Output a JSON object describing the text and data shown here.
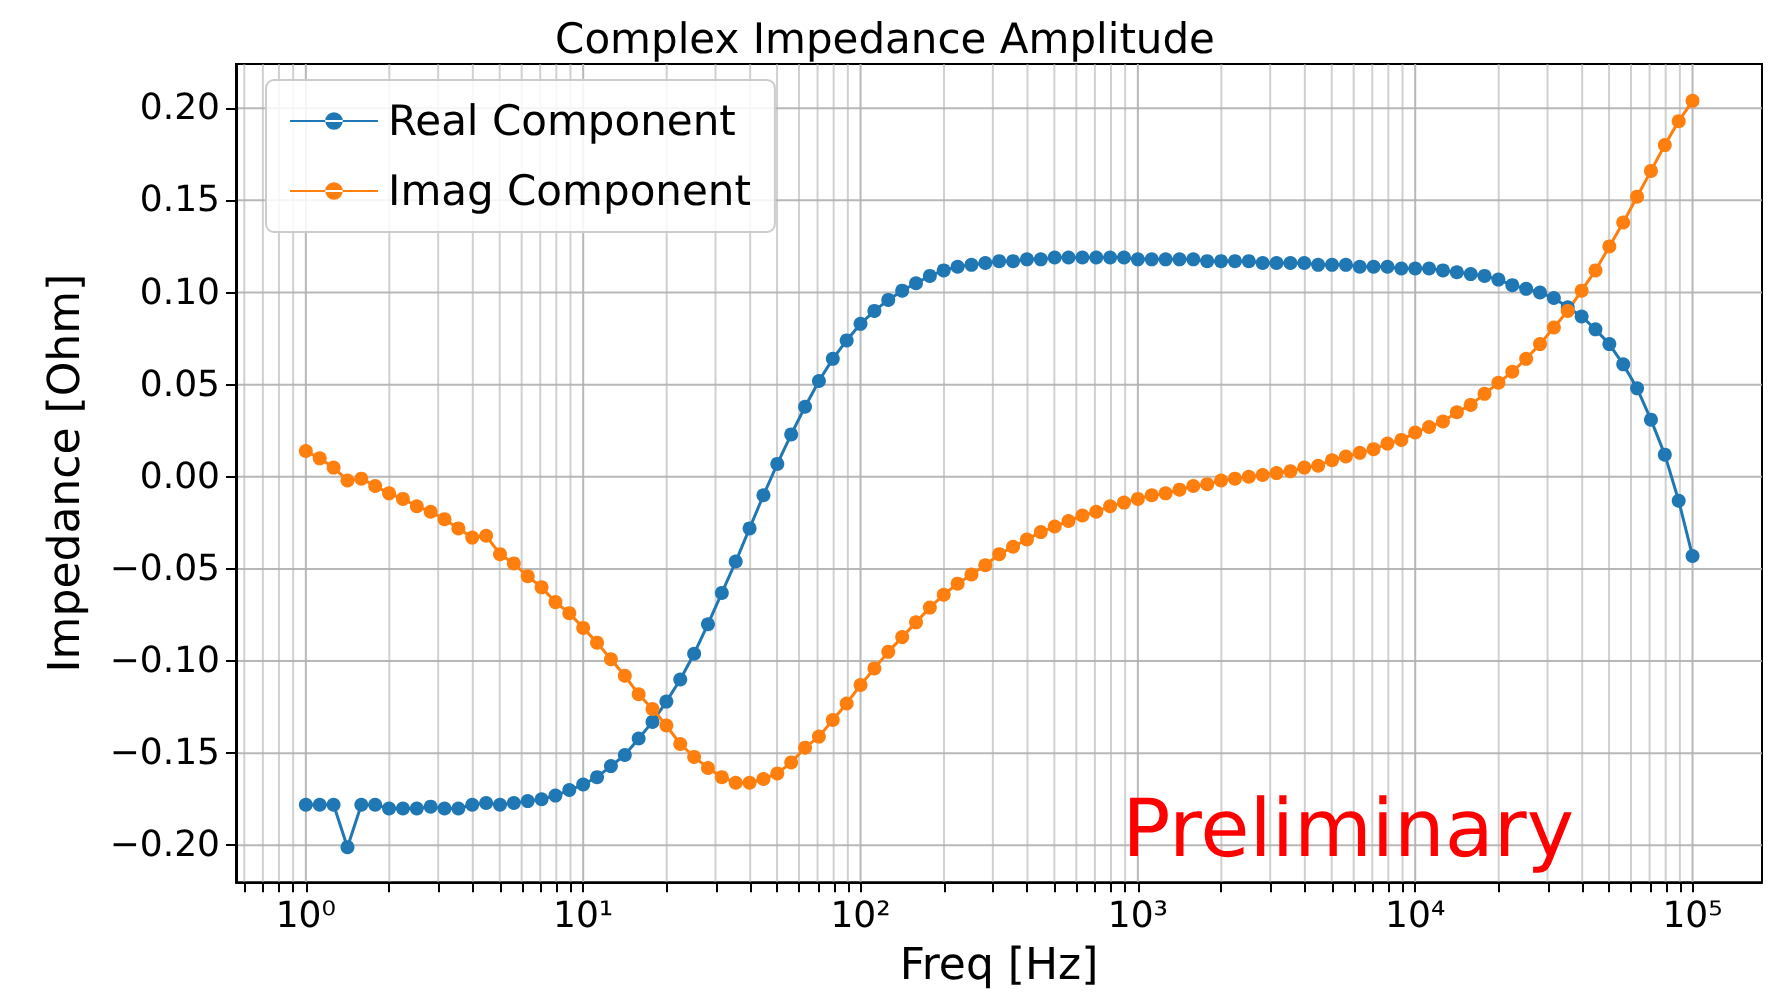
{
  "chart_data": {
    "type": "line",
    "title": "Complex Impedance Amplitude",
    "xlabel": "Freq [Hz]",
    "ylabel": "Impedance [Ohm]",
    "log": "x",
    "grid": true,
    "legend": "top left",
    "marker": "circle",
    "line_style": "solid",
    "annotations": [
      "Preliminary"
    ],
    "xlim": [
      0.56,
      178000
    ],
    "ylim": [
      -0.22,
      0.224
    ],
    "xticks": [
      {
        "value": 0.6,
        "label": null
      },
      {
        "value": 0.7,
        "label": null
      },
      {
        "value": 0.8,
        "label": null
      },
      {
        "value": 0.9,
        "label": null
      },
      {
        "value": 1,
        "label": "10⁰"
      },
      {
        "value": 2,
        "label": null
      },
      {
        "value": 3,
        "label": null
      },
      {
        "value": 4,
        "label": null
      },
      {
        "value": 5,
        "label": null
      },
      {
        "value": 6,
        "label": null
      },
      {
        "value": 7,
        "label": null
      },
      {
        "value": 8,
        "label": null
      },
      {
        "value": 9,
        "label": null
      },
      {
        "value": 10,
        "label": "10¹"
      },
      {
        "value": 20,
        "label": null
      },
      {
        "value": 30,
        "label": null
      },
      {
        "value": 40,
        "label": null
      },
      {
        "value": 50,
        "label": null
      },
      {
        "value": 60,
        "label": null
      },
      {
        "value": 70,
        "label": null
      },
      {
        "value": 80,
        "label": null
      },
      {
        "value": 90,
        "label": null
      },
      {
        "value": 100,
        "label": "10²"
      },
      {
        "value": 200,
        "label": null
      },
      {
        "value": 300,
        "label": null
      },
      {
        "value": 400,
        "label": null
      },
      {
        "value": 500,
        "label": null
      },
      {
        "value": 600,
        "label": null
      },
      {
        "value": 700,
        "label": null
      },
      {
        "value": 800,
        "label": null
      },
      {
        "value": 900,
        "label": null
      },
      {
        "value": 1000,
        "label": "10³"
      },
      {
        "value": 2000,
        "label": null
      },
      {
        "value": 3000,
        "label": null
      },
      {
        "value": 4000,
        "label": null
      },
      {
        "value": 5000,
        "label": null
      },
      {
        "value": 6000,
        "label": null
      },
      {
        "value": 7000,
        "label": null
      },
      {
        "value": 8000,
        "label": null
      },
      {
        "value": 9000,
        "label": null
      },
      {
        "value": 10000,
        "label": "10⁴"
      },
      {
        "value": 20000,
        "label": null
      },
      {
        "value": 30000,
        "label": null
      },
      {
        "value": 40000,
        "label": null
      },
      {
        "value": 50000,
        "label": null
      },
      {
        "value": 60000,
        "label": null
      },
      {
        "value": 70000,
        "label": null
      },
      {
        "value": 80000,
        "label": null
      },
      {
        "value": 90000,
        "label": null
      },
      {
        "value": 100000,
        "label": "10⁵"
      }
    ],
    "yticks": [
      {
        "value": -0.2,
        "label": "−0.20"
      },
      {
        "value": -0.15,
        "label": "−0.15"
      },
      {
        "value": -0.1,
        "label": "−0.10"
      },
      {
        "value": -0.05,
        "label": "−0.05"
      },
      {
        "value": 0,
        "label": "0.00"
      },
      {
        "value": 0.05,
        "label": "0.05"
      },
      {
        "value": 0.1,
        "label": "0.10"
      },
      {
        "value": 0.15,
        "label": "0.15"
      },
      {
        "value": 0.2,
        "label": "0.20"
      }
    ],
    "x": [
      1,
      1.122,
      1.259,
      1.413,
      1.585,
      1.778,
      1.995,
      2.239,
      2.512,
      2.818,
      3.162,
      3.548,
      3.981,
      4.467,
      5.012,
      5.623,
      6.31,
      7.079,
      7.943,
      8.913,
      10,
      11.22,
      12.59,
      14.13,
      15.85,
      17.78,
      19.95,
      22.39,
      25.12,
      28.18,
      31.62,
      35.48,
      39.81,
      44.67,
      50.12,
      56.23,
      63.1,
      70.79,
      79.43,
      89.13,
      100,
      112.2,
      125.9,
      141.3,
      158.5,
      177.8,
      199.5,
      223.9,
      251.2,
      281.8,
      316.2,
      354.8,
      398.1,
      446.7,
      501.2,
      562.3,
      631,
      707.9,
      794.3,
      891.3,
      1000,
      1122,
      1259,
      1413,
      1585,
      1778,
      1995,
      2239,
      2512,
      2818,
      3162,
      3548,
      3981,
      4467,
      5012,
      5623,
      6310,
      7079,
      7943,
      8913,
      10000,
      11220,
      12590,
      14130,
      15850,
      17780,
      19950,
      22390,
      25120,
      28180,
      31620,
      35480,
      39810,
      44670,
      50120,
      56230,
      63100,
      70790,
      79430,
      89130,
      100000
    ],
    "series": [
      {
        "name": "Real Component",
        "color": "#1f77b4",
        "values": [
          -0.178,
          -0.178,
          -0.178,
          -0.201,
          -0.178,
          -0.178,
          -0.18,
          -0.18,
          -0.18,
          -0.179,
          -0.18,
          -0.18,
          -0.178,
          -0.177,
          -0.178,
          -0.177,
          -0.176,
          -0.175,
          -0.173,
          -0.17,
          -0.167,
          -0.163,
          -0.157,
          -0.151,
          -0.142,
          -0.133,
          -0.122,
          -0.11,
          -0.096,
          -0.08,
          -0.063,
          -0.046,
          -0.028,
          -0.01,
          0.007,
          0.023,
          0.038,
          0.052,
          0.064,
          0.074,
          0.083,
          0.09,
          0.096,
          0.101,
          0.105,
          0.109,
          0.112,
          0.114,
          0.115,
          0.116,
          0.117,
          0.117,
          0.118,
          0.118,
          0.119,
          0.119,
          0.119,
          0.119,
          0.119,
          0.119,
          0.118,
          0.118,
          0.118,
          0.118,
          0.118,
          0.117,
          0.117,
          0.117,
          0.117,
          0.116,
          0.116,
          0.116,
          0.116,
          0.115,
          0.115,
          0.115,
          0.114,
          0.114,
          0.114,
          0.113,
          0.113,
          0.113,
          0.112,
          0.111,
          0.11,
          0.109,
          0.107,
          0.104,
          0.102,
          0.1,
          0.097,
          0.092,
          0.087,
          0.08,
          0.072,
          0.061,
          0.048,
          0.031,
          0.012,
          -0.013,
          -0.043
        ]
      },
      {
        "name": "Imag Component",
        "color": "#ff7f0e",
        "values": [
          0.014,
          0.01,
          0.005,
          -0.002,
          -0.001,
          -0.005,
          -0.009,
          -0.012,
          -0.016,
          -0.019,
          -0.023,
          -0.028,
          -0.033,
          -0.032,
          -0.042,
          -0.047,
          -0.054,
          -0.06,
          -0.068,
          -0.074,
          -0.082,
          -0.09,
          -0.099,
          -0.108,
          -0.118,
          -0.126,
          -0.135,
          -0.145,
          -0.152,
          -0.158,
          -0.163,
          -0.166,
          -0.166,
          -0.164,
          -0.161,
          -0.155,
          -0.147,
          -0.141,
          -0.132,
          -0.123,
          -0.113,
          -0.104,
          -0.095,
          -0.087,
          -0.079,
          -0.071,
          -0.064,
          -0.058,
          -0.053,
          -0.048,
          -0.042,
          -0.038,
          -0.034,
          -0.03,
          -0.027,
          -0.024,
          -0.021,
          -0.019,
          -0.016,
          -0.014,
          -0.012,
          -0.01,
          -0.009,
          -0.007,
          -0.005,
          -0.004,
          -0.002,
          -0.001,
          0.0,
          0.001,
          0.002,
          0.003,
          0.005,
          0.006,
          0.009,
          0.011,
          0.013,
          0.015,
          0.018,
          0.02,
          0.024,
          0.027,
          0.03,
          0.035,
          0.039,
          0.045,
          0.051,
          0.057,
          0.064,
          0.072,
          0.081,
          0.09,
          0.101,
          0.112,
          0.125,
          0.138,
          0.152,
          0.166,
          0.18,
          0.193,
          0.204
        ]
      }
    ]
  }
}
